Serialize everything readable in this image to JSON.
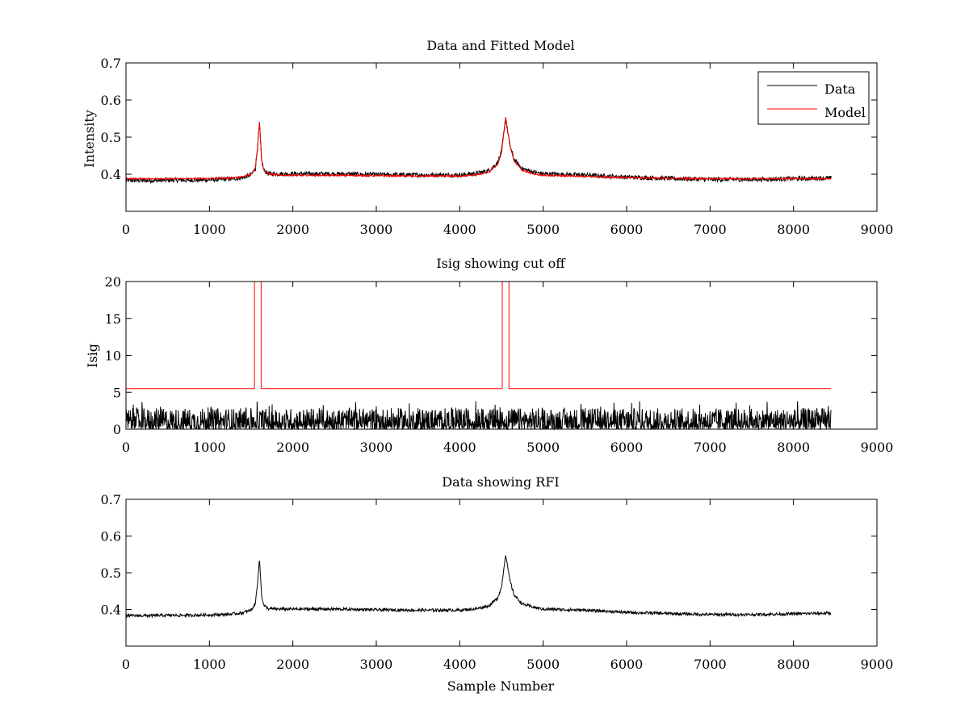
{
  "chart_data": [
    {
      "type": "line",
      "title": "Data and Fitted Model",
      "xlabel": "",
      "ylabel": "Intensity",
      "xlim": [
        0,
        9000
      ],
      "ylim": [
        0.3,
        0.7
      ],
      "x_ticks": [
        0,
        1000,
        2000,
        3000,
        4000,
        5000,
        6000,
        7000,
        8000,
        9000
      ],
      "y_ticks": [
        0.4,
        0.5,
        0.6,
        0.7
      ],
      "legend": {
        "placement": "top-right",
        "entries": [
          "Data",
          "Model"
        ]
      },
      "series": [
        {
          "name": "Data",
          "color": "#000000",
          "x": [
            0,
            250,
            500,
            750,
            1000,
            1250,
            1400,
            1500,
            1550,
            1575,
            1600,
            1625,
            1650,
            1700,
            1800,
            2000,
            2500,
            3000,
            3500,
            4000,
            4200,
            4350,
            4450,
            4500,
            4550,
            4600,
            4650,
            4750,
            4900,
            5000,
            5500,
            6000,
            6500,
            7000,
            7500,
            8000,
            8450
          ],
          "y": [
            0.383,
            0.383,
            0.384,
            0.384,
            0.385,
            0.387,
            0.391,
            0.398,
            0.415,
            0.47,
            0.535,
            0.44,
            0.412,
            0.402,
            0.401,
            0.401,
            0.401,
            0.399,
            0.398,
            0.398,
            0.402,
            0.41,
            0.43,
            0.46,
            0.55,
            0.48,
            0.44,
            0.415,
            0.405,
            0.401,
            0.398,
            0.392,
            0.389,
            0.386,
            0.386,
            0.388,
            0.39
          ],
          "noise_amplitude": 0.006
        },
        {
          "name": "Model",
          "color": "#ff0000",
          "x": [
            0,
            250,
            500,
            750,
            1000,
            1250,
            1400,
            1500,
            1550,
            1575,
            1600,
            1625,
            1650,
            1700,
            1800,
            2000,
            2500,
            3000,
            3500,
            4000,
            4200,
            4350,
            4450,
            4500,
            4550,
            4600,
            4650,
            4750,
            4900,
            5000,
            5500,
            6000,
            6500,
            7000,
            7500,
            8000,
            8450
          ],
          "y": [
            0.388,
            0.388,
            0.388,
            0.388,
            0.389,
            0.39,
            0.393,
            0.4,
            0.418,
            0.47,
            0.54,
            0.44,
            0.412,
            0.401,
            0.398,
            0.397,
            0.397,
            0.396,
            0.395,
            0.395,
            0.398,
            0.406,
            0.425,
            0.455,
            0.555,
            0.478,
            0.436,
            0.41,
            0.4,
            0.397,
            0.394,
            0.391,
            0.389,
            0.388,
            0.388,
            0.388,
            0.388
          ],
          "noise_amplitude": 0.002
        }
      ]
    },
    {
      "type": "line",
      "title": "Isig showing cut off",
      "xlabel": "",
      "ylabel": "Isig",
      "xlim": [
        0,
        9000
      ],
      "ylim": [
        0,
        20
      ],
      "x_ticks": [
        0,
        1000,
        2000,
        3000,
        4000,
        5000,
        6000,
        7000,
        8000,
        9000
      ],
      "y_ticks": [
        0,
        5,
        10,
        15,
        20
      ],
      "series": [
        {
          "color": "#000000",
          "x": [
            0,
            8450
          ],
          "y": [
            1.0,
            1.0
          ],
          "noise_range": [
            0,
            3.8
          ]
        },
        {
          "color": "#ff0000",
          "x": [
            0,
            1540,
            1540,
            1620,
            1620,
            4510,
            4510,
            4590,
            4590,
            8450
          ],
          "y": [
            5.5,
            5.5,
            20,
            20,
            5.5,
            5.5,
            20,
            20,
            5.5,
            5.5
          ]
        }
      ]
    },
    {
      "type": "line",
      "title": "Data showing RFI",
      "xlabel": "Sample Number",
      "ylabel": "",
      "xlim": [
        0,
        9000
      ],
      "ylim": [
        0.3,
        0.7
      ],
      "x_ticks": [
        0,
        1000,
        2000,
        3000,
        4000,
        5000,
        6000,
        7000,
        8000,
        9000
      ],
      "y_ticks": [
        0.4,
        0.5,
        0.6,
        0.7
      ],
      "series": [
        {
          "color": "#000000",
          "x": [
            0,
            250,
            500,
            750,
            1000,
            1250,
            1400,
            1500,
            1550,
            1575,
            1600,
            1625,
            1650,
            1700,
            1800,
            2000,
            2500,
            3000,
            3500,
            4000,
            4200,
            4350,
            4450,
            4500,
            4550,
            4600,
            4650,
            4750,
            4900,
            5000,
            5500,
            6000,
            6500,
            7000,
            7500,
            8000,
            8450
          ],
          "y": [
            0.383,
            0.383,
            0.384,
            0.384,
            0.385,
            0.387,
            0.391,
            0.398,
            0.415,
            0.47,
            0.535,
            0.44,
            0.412,
            0.402,
            0.401,
            0.401,
            0.401,
            0.399,
            0.398,
            0.398,
            0.402,
            0.41,
            0.43,
            0.46,
            0.55,
            0.48,
            0.44,
            0.415,
            0.405,
            0.401,
            0.398,
            0.392,
            0.389,
            0.386,
            0.386,
            0.388,
            0.39
          ],
          "noise_amplitude": 0.004
        }
      ]
    }
  ]
}
